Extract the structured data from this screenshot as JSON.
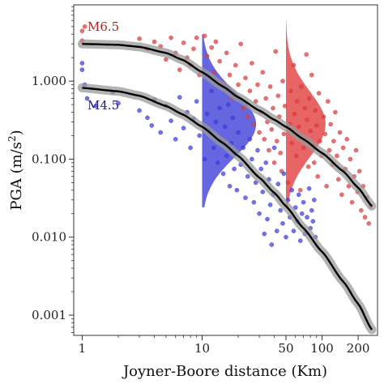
{
  "chart_data": {
    "type": "scatter",
    "xlabel": "Joyner-Boore distance (Km)",
    "ylabel_main": "PGA (m/s",
    "ylabel_sup": "2",
    "ylabel_close": ")",
    "x_scale": "log",
    "y_scale": "log",
    "xlim": [
      0.85,
      290
    ],
    "ylim": [
      0.00055,
      9.5
    ],
    "x_ticks": [
      {
        "value": 1,
        "label": "1"
      },
      {
        "value": 10,
        "label": "10"
      },
      {
        "value": 50,
        "label": "50"
      },
      {
        "value": 100,
        "label": "100"
      },
      {
        "value": 200,
        "label": "200"
      }
    ],
    "y_ticks": [
      {
        "value": 0.001,
        "label": "0.001"
      },
      {
        "value": 0.01,
        "label": "0.010"
      },
      {
        "value": 0.1,
        "label": "0.100"
      },
      {
        "value": 1,
        "label": "1.000"
      }
    ],
    "grid": false,
    "series": [
      {
        "name": "M6.5",
        "color": "#d93b3b",
        "points": [
          [
            1.0,
            4.4
          ],
          [
            1.0,
            3.3
          ],
          [
            1.05,
            5.0
          ],
          [
            3.0,
            3.5
          ],
          [
            3.5,
            2.6
          ],
          [
            4.0,
            3.2
          ],
          [
            4.5,
            2.8
          ],
          [
            5.0,
            1.9
          ],
          [
            5.5,
            3.6
          ],
          [
            6.0,
            2.3
          ],
          [
            6.5,
            1.4
          ],
          [
            7.0,
            3.1
          ],
          [
            7.5,
            2.0
          ],
          [
            8.0,
            1.6
          ],
          [
            8.5,
            2.6
          ],
          [
            9.0,
            3.6
          ],
          [
            9.5,
            1.2
          ],
          [
            10.5,
            3.8
          ],
          [
            11.0,
            2.1
          ],
          [
            12.0,
            2.7
          ],
          [
            12.5,
            1.3
          ],
          [
            13.0,
            3.2
          ],
          [
            14.0,
            1.8
          ],
          [
            15.0,
            0.9
          ],
          [
            16.0,
            2.3
          ],
          [
            17.0,
            1.2
          ],
          [
            18.0,
            0.6
          ],
          [
            19.0,
            1.6
          ],
          [
            20.0,
            0.9
          ],
          [
            21.0,
            3.0
          ],
          [
            22.0,
            0.45
          ],
          [
            23.0,
            1.1
          ],
          [
            24.0,
            0.35
          ],
          [
            25.0,
            0.75
          ],
          [
            26.0,
            1.7
          ],
          [
            27.0,
            0.28
          ],
          [
            28.0,
            0.55
          ],
          [
            29.0,
            0.9
          ],
          [
            30.0,
            0.22
          ],
          [
            31.0,
            0.4
          ],
          [
            32.0,
            1.3
          ],
          [
            33.0,
            0.18
          ],
          [
            34.0,
            0.6
          ],
          [
            35.0,
            0.3
          ],
          [
            36.0,
            0.13
          ],
          [
            37.0,
            0.85
          ],
          [
            38.0,
            0.24
          ],
          [
            39.0,
            0.45
          ],
          [
            40.0,
            0.09
          ],
          [
            41.0,
            2.4
          ],
          [
            42.0,
            0.17
          ],
          [
            43.0,
            0.65
          ],
          [
            44.0,
            0.35
          ],
          [
            45.0,
            0.12
          ],
          [
            46.0,
            0.07
          ],
          [
            47.0,
            1.0
          ],
          [
            48.0,
            0.21
          ],
          [
            49.0,
            0.48
          ],
          [
            52.0,
            0.05
          ],
          [
            54.0,
            0.28
          ],
          [
            55.0,
            0.75
          ],
          [
            56.0,
            0.16
          ],
          [
            58.0,
            1.6
          ],
          [
            59.0,
            0.38
          ],
          [
            61.0,
            0.11
          ],
          [
            62.0,
            0.55
          ],
          [
            64.0,
            0.26
          ],
          [
            66.0,
            0.04
          ],
          [
            67.0,
            0.85
          ],
          [
            68.0,
            0.19
          ],
          [
            70.0,
            0.14
          ],
          [
            72.0,
            0.45
          ],
          [
            74.0,
            2.2
          ],
          [
            75.0,
            0.32
          ],
          [
            77.0,
            0.08
          ],
          [
            78.0,
            0.6
          ],
          [
            80.0,
            0.23
          ],
          [
            82.0,
            1.2
          ],
          [
            84.0,
            0.15
          ],
          [
            86.0,
            0.09
          ],
          [
            88.0,
            0.42
          ],
          [
            90.0,
            0.27
          ],
          [
            92.0,
            0.06
          ],
          [
            94.0,
            0.7
          ],
          [
            96.0,
            0.17
          ],
          [
            99.0,
            0.11
          ],
          [
            103.0,
            0.35
          ],
          [
            106.0,
            0.21
          ],
          [
            109.0,
            0.045
          ],
          [
            112.0,
            0.55
          ],
          [
            115.0,
            0.13
          ],
          [
            118.0,
            0.28
          ],
          [
            122.0,
            0.085
          ],
          [
            125.0,
            0.17
          ],
          [
            129.0,
            0.4
          ],
          [
            133.0,
            0.11
          ],
          [
            137.0,
            0.055
          ],
          [
            141.0,
            0.22
          ],
          [
            146.0,
            0.035
          ],
          [
            150.0,
            0.14
          ],
          [
            156.0,
            0.075
          ],
          [
            161.0,
            0.18
          ],
          [
            167.0,
            0.045
          ],
          [
            172.0,
            0.1
          ],
          [
            178.0,
            0.028
          ],
          [
            185.0,
            0.06
          ],
          [
            192.0,
            0.13
          ],
          [
            198.0,
            0.038
          ],
          [
            205.0,
            0.07
          ],
          [
            212.0,
            0.022
          ],
          [
            220.0,
            0.045
          ],
          [
            228.0,
            0.018
          ],
          [
            236.0,
            0.032
          ],
          [
            245.0,
            0.015
          ],
          [
            255.0,
            0.025
          ]
        ]
      },
      {
        "name": "M4.5",
        "color": "#3b3bd9",
        "points": [
          [
            1.0,
            1.7
          ],
          [
            1.0,
            1.4
          ],
          [
            1.05,
            0.9
          ],
          [
            1.1,
            0.6
          ],
          [
            1.3,
            0.48
          ],
          [
            1.8,
            0.72
          ],
          [
            2.0,
            0.52
          ],
          [
            3.0,
            0.42
          ],
          [
            3.5,
            0.34
          ],
          [
            3.8,
            0.27
          ],
          [
            4.0,
            0.58
          ],
          [
            4.5,
            0.22
          ],
          [
            5.0,
            0.48
          ],
          [
            5.5,
            0.31
          ],
          [
            6.0,
            0.18
          ],
          [
            6.5,
            0.62
          ],
          [
            7.0,
            0.25
          ],
          [
            7.5,
            0.4
          ],
          [
            8.0,
            0.14
          ],
          [
            8.5,
            0.33
          ],
          [
            9.0,
            0.55
          ],
          [
            9.5,
            0.2
          ],
          [
            10.5,
            0.1
          ],
          [
            11.0,
            0.38
          ],
          [
            11.5,
            0.23
          ],
          [
            12.0,
            0.75
          ],
          [
            12.5,
            0.14
          ],
          [
            13.0,
            0.3
          ],
          [
            13.5,
            0.09
          ],
          [
            14.0,
            0.45
          ],
          [
            14.5,
            0.17
          ],
          [
            15.0,
            0.065
          ],
          [
            15.5,
            0.26
          ],
          [
            16.0,
            0.11
          ],
          [
            16.5,
            0.5
          ],
          [
            17.0,
            0.045
          ],
          [
            17.5,
            0.16
          ],
          [
            18.0,
            0.34
          ],
          [
            18.5,
            0.075
          ],
          [
            19.0,
            0.12
          ],
          [
            19.5,
            0.04
          ],
          [
            20.0,
            0.22
          ],
          [
            21.0,
            0.085
          ],
          [
            22.0,
            0.14
          ],
          [
            23.0,
            0.032
          ],
          [
            24.0,
            0.06
          ],
          [
            25.0,
            0.18
          ],
          [
            26.0,
            0.1
          ],
          [
            27.0,
            0.028
          ],
          [
            28.0,
            0.05
          ],
          [
            29.0,
            0.13
          ],
          [
            30.0,
            0.02
          ],
          [
            31.0,
            0.075
          ],
          [
            32.0,
            0.038
          ],
          [
            33.0,
            0.011
          ],
          [
            34.0,
            0.09
          ],
          [
            35.0,
            0.017
          ],
          [
            36.0,
            0.055
          ],
          [
            37.0,
            0.026
          ],
          [
            38.0,
            0.008
          ],
          [
            39.0,
            0.035
          ],
          [
            40.0,
            0.14
          ],
          [
            42.0,
            0.012
          ],
          [
            43.0,
            0.048
          ],
          [
            45.0,
            0.022
          ],
          [
            47.0,
            0.015
          ],
          [
            48.0,
            0.065
          ],
          [
            50.0,
            0.01
          ],
          [
            52.0,
            0.03
          ],
          [
            54.0,
            0.018
          ],
          [
            56.0,
            0.04
          ],
          [
            58.0,
            0.012
          ],
          [
            60.0,
            0.024
          ],
          [
            62.0,
            0.016
          ],
          [
            64.0,
            0.035
          ],
          [
            66.0,
            0.009
          ],
          [
            68.0,
            0.02
          ],
          [
            70.0,
            0.028
          ],
          [
            72.0,
            0.011
          ],
          [
            75.0,
            0.018
          ],
          [
            78.0,
            0.042
          ],
          [
            80.0,
            0.013
          ],
          [
            82.0,
            0.022
          ],
          [
            84.0,
            0.016
          ],
          [
            86.0,
            0.03
          ],
          [
            88.0,
            0.01
          ]
        ]
      }
    ],
    "curves": [
      {
        "name": "M6.5",
        "x": [
          1,
          2,
          3,
          5,
          7,
          10,
          15,
          20,
          30,
          40,
          50,
          70,
          100,
          150,
          200,
          260
        ],
        "y": [
          3.0,
          2.92,
          2.75,
          2.3,
          1.85,
          1.3,
          0.85,
          0.62,
          0.42,
          0.32,
          0.26,
          0.18,
          0.12,
          0.07,
          0.043,
          0.025
        ]
      },
      {
        "name": "M4.5",
        "x": [
          1,
          2,
          3,
          5,
          7,
          10,
          15,
          20,
          30,
          40,
          50,
          70,
          100,
          150,
          200,
          260
        ],
        "y": [
          0.82,
          0.74,
          0.65,
          0.48,
          0.37,
          0.26,
          0.16,
          0.11,
          0.058,
          0.037,
          0.025,
          0.013,
          0.0065,
          0.0027,
          0.0014,
          0.00065
        ]
      }
    ],
    "distributions": [
      {
        "name": "M4.5",
        "color": "#3b3bd9",
        "x_center": 10,
        "y_center": 0.28,
        "y_min": 0.024,
        "y_max": 4.0,
        "width_decades": 0.45
      },
      {
        "name": "M6.5",
        "color": "#e03a3a",
        "x_center": 50,
        "y_center": 0.28,
        "y_min": 0.024,
        "y_max": 6.0,
        "width_decades": 0.33
      }
    ],
    "annotations": [
      {
        "text": "M6.5",
        "color": "#b22222"
      },
      {
        "text": "M4.5",
        "color": "#1c1c7a"
      }
    ]
  }
}
